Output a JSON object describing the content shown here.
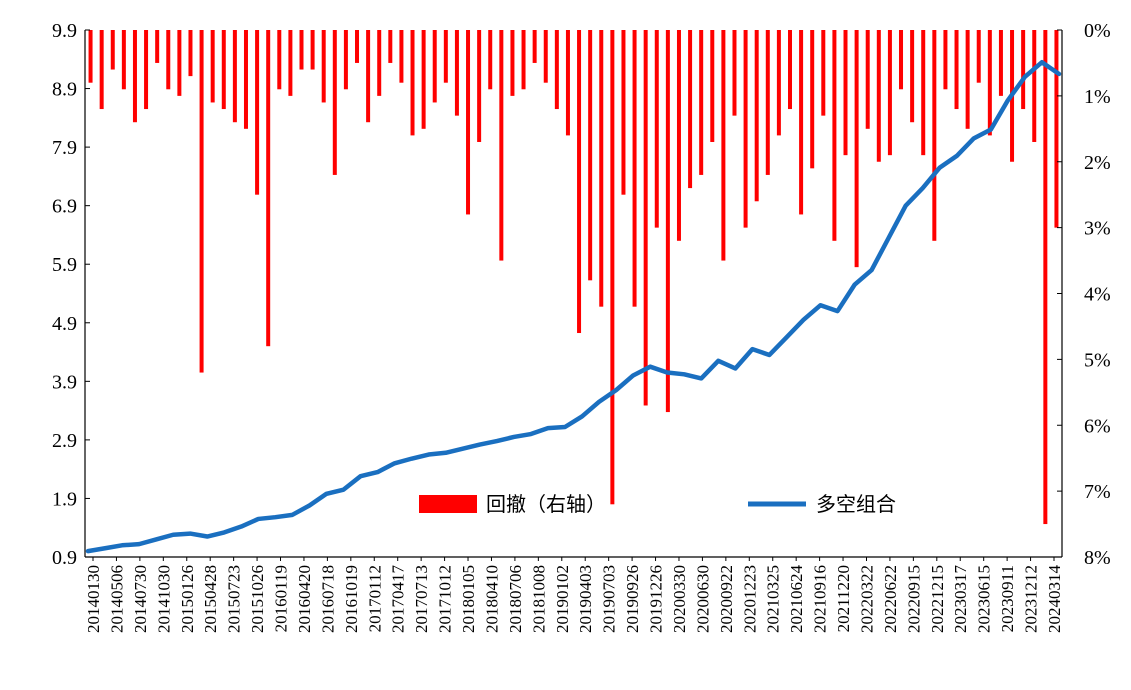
{
  "chart_data": {
    "type": "line",
    "title": "",
    "xlabel": "",
    "ylabel": "",
    "x_tick_labels": [
      "20140130",
      "20140506",
      "20140730",
      "20141030",
      "20150126",
      "20150428",
      "20150723",
      "20151026",
      "20160119",
      "20160420",
      "20160718",
      "20161019",
      "20170112",
      "20170417",
      "20170713",
      "20171012",
      "20180105",
      "20180410",
      "20180706",
      "20181008",
      "20190102",
      "20190403",
      "20190703",
      "20190926",
      "20191226",
      "20200330",
      "20200630",
      "20200922",
      "20201223",
      "20210325",
      "20210624",
      "20210916",
      "20211220",
      "20220322",
      "20220622",
      "20220915",
      "20221215",
      "20230317",
      "20230615",
      "20230911",
      "20231212",
      "20240314"
    ],
    "y_left_ticks": [
      "9.9",
      "8.9",
      "7.9",
      "6.9",
      "5.9",
      "4.9",
      "3.9",
      "2.9",
      "1.9",
      "0.9"
    ],
    "y_right_ticks": [
      "0%",
      "1%",
      "2%",
      "3%",
      "4%",
      "5%",
      "6%",
      "7%",
      "8%"
    ],
    "ylim_left": [
      0.9,
      9.9
    ],
    "ylim_right_inverted": [
      0,
      8
    ],
    "legend": {
      "placement": "bottom-center",
      "drawdown_label": "回撤（右轴）",
      "long_short_label": "多空组合"
    },
    "colors": {
      "drawdown": "#ff0000",
      "long_short": "#1a6fc0"
    },
    "series": [
      {
        "name": "多空组合",
        "axis": "left",
        "values": [
          1.0,
          1.05,
          1.1,
          1.12,
          1.2,
          1.28,
          1.3,
          1.25,
          1.32,
          1.42,
          1.55,
          1.58,
          1.62,
          1.78,
          1.98,
          2.05,
          2.28,
          2.35,
          2.5,
          2.58,
          2.65,
          2.68,
          2.75,
          2.82,
          2.88,
          2.95,
          3.0,
          3.1,
          3.12,
          3.3,
          3.55,
          3.75,
          4.0,
          4.15,
          4.05,
          4.02,
          3.95,
          4.25,
          4.12,
          4.45,
          4.35,
          4.65,
          4.95,
          5.2,
          5.1,
          5.55,
          5.8,
          6.35,
          6.9,
          7.2,
          7.55,
          7.75,
          8.05,
          8.2,
          8.7,
          9.1,
          9.35,
          9.15
        ]
      },
      {
        "name": "回撤（右轴）",
        "axis": "right",
        "type": "bar",
        "values": [
          0.8,
          1.2,
          0.6,
          0.9,
          1.4,
          1.2,
          0.5,
          0.9,
          1.0,
          0.7,
          5.2,
          1.1,
          1.2,
          1.4,
          1.5,
          2.5,
          4.8,
          0.9,
          1.0,
          0.6,
          0.6,
          1.1,
          2.2,
          0.9,
          0.5,
          1.4,
          1.0,
          0.5,
          0.8,
          1.6,
          1.5,
          1.1,
          0.8,
          1.3,
          2.8,
          1.7,
          0.9,
          3.5,
          1.0,
          0.9,
          0.5,
          0.8,
          1.2,
          1.6,
          4.6,
          3.8,
          4.2,
          7.2,
          2.5,
          4.2,
          5.7,
          3.0,
          5.8,
          3.2,
          2.4,
          2.2,
          1.7,
          3.5,
          1.3,
          3.0,
          2.6,
          2.2,
          1.6,
          1.2,
          2.8,
          2.1,
          1.3,
          3.2,
          1.9,
          3.6,
          1.5,
          2.0,
          1.9,
          0.9,
          1.4,
          1.9,
          3.2,
          0.9,
          1.2,
          1.5,
          0.8,
          1.6,
          1.0,
          2.0,
          1.2,
          1.7,
          7.5,
          3.0
        ]
      }
    ]
  }
}
